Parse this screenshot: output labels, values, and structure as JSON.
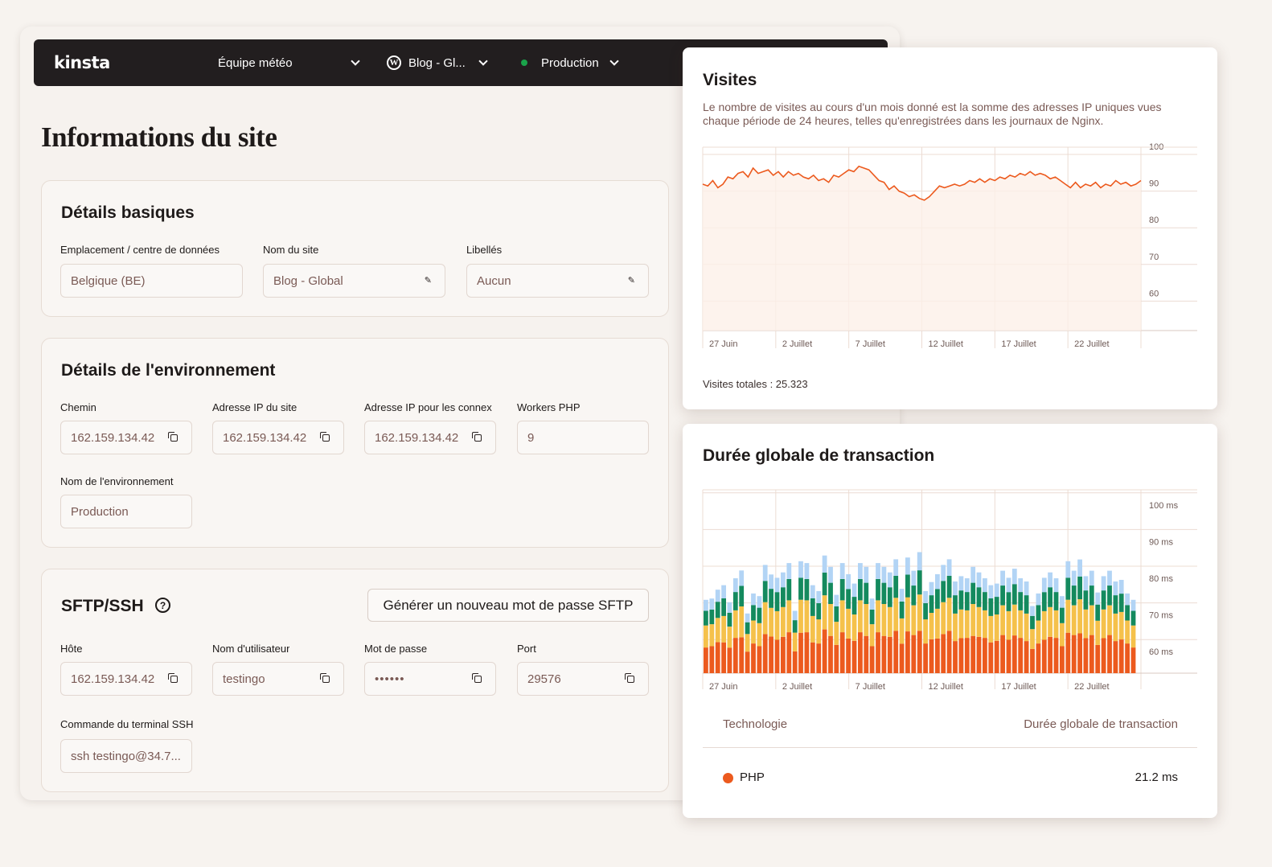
{
  "topbar": {
    "logo": "kinsta",
    "team": "Équipe météo",
    "site": "Blog - Gl...",
    "environment": "Production",
    "env_status_color": "#1aa34a"
  },
  "page_title": "Informations du site",
  "basic_details": {
    "title": "Détails basiques",
    "location_label": "Emplacement / centre de données",
    "location_value": "Belgique (BE)",
    "site_name_label": "Nom du site",
    "site_name_value": "Blog - Global",
    "labels_label": "Libellés",
    "labels_value": "Aucun"
  },
  "environment_details": {
    "title": "Détails de l'environnement",
    "path_label": "Chemin",
    "path_value": "162.159.134.42",
    "site_ip_label": "Adresse IP du site",
    "site_ip_value": "162.159.134.42",
    "conn_ip_label": "Adresse IP pour les connex",
    "conn_ip_value": "162.159.134.42",
    "php_workers_label": "Workers PHP",
    "php_workers_value": "9",
    "env_name_label": "Nom de l'environnement",
    "env_name_value": "Production"
  },
  "sftp": {
    "title": "SFTP/SSH",
    "generate_button": "Générer un nouveau mot de passe SFTP",
    "host_label": "Hôte",
    "host_value": "162.159.134.42",
    "username_label": "Nom d'utilisateur",
    "username_value": "testingo",
    "password_label": "Mot de passe",
    "password_value": "••••••",
    "port_label": "Port",
    "port_value": "29576",
    "ssh_label": "Commande du terminal SSH",
    "ssh_value": "ssh testingo@34.7..."
  },
  "visits_panel": {
    "title": "Visites",
    "description": "Le nombre de visites au cours d'un mois donné est la somme des adresses IP uniques vues chaque période de 24 heures, telles qu'enregistrées dans les journaux de Nginx.",
    "total": "Visites totales : 25.323"
  },
  "transaction_panel": {
    "title": "Durée globale de transaction",
    "col_technology": "Technologie",
    "col_duration": "Durée globale de transaction",
    "row_label": "PHP",
    "row_value": "21.2 ms",
    "row_color": "#ec5a1e"
  },
  "chart_data": [
    {
      "type": "line",
      "title": "Visites",
      "x_ticks": [
        "27 Juin",
        "2 Juillet",
        "7 Juillet",
        "12 Juillet",
        "17 Juillet",
        "22 Juillet"
      ],
      "y_ticks": [
        "100",
        "90",
        "80",
        "70",
        "60"
      ],
      "ylim": [
        50,
        100
      ],
      "grid": true,
      "color": "#ec5a1e",
      "series": [
        {
          "values": [
            91,
            90.5,
            92,
            90,
            91,
            93,
            92.5,
            94,
            94.5,
            93,
            95.5,
            94,
            94.5,
            95,
            93.5,
            94.5,
            93,
            94.5,
            93.5,
            94,
            93,
            92.5,
            93.5,
            92,
            92.5,
            91.5,
            93.5,
            93,
            94,
            95,
            94.5,
            96,
            95.5,
            95,
            93.5,
            92,
            91.5,
            89.5,
            90.5,
            89,
            88.5,
            87.5,
            88,
            87,
            86.5,
            87.5,
            89,
            90.5,
            90,
            90.5,
            91,
            90.5,
            91,
            92,
            91.5,
            92.5,
            91.5,
            92.5,
            92,
            93,
            92.5,
            93.5,
            93,
            94,
            93.5,
            94.5,
            93.5,
            94,
            93.5,
            92.5,
            93,
            92,
            91,
            90,
            91.5,
            90,
            91,
            90.5,
            91.5,
            90,
            91,
            90.5,
            92,
            91,
            91.5,
            90.5,
            91,
            92
          ]
        }
      ]
    },
    {
      "type": "bar",
      "title": "Durée globale de transaction",
      "stacked": true,
      "x_ticks": [
        "27 Juin",
        "2 Juillet",
        "7 Juillet",
        "12 Juillet",
        "17 Juillet",
        "22 Juillet"
      ],
      "y_ticks": [
        "100 ms",
        "90 ms",
        "80 ms",
        "70 ms",
        "60 ms"
      ],
      "ylim": [
        55,
        105
      ],
      "grid": true,
      "series_colors": [
        "#ec5a1e",
        "#f5c14b",
        "#148a5e",
        "#b2d4f5"
      ],
      "totals": [
        70,
        70,
        72,
        74,
        69,
        75,
        78,
        66,
        71,
        71,
        79,
        76,
        76,
        77,
        79,
        67,
        80,
        79,
        74,
        72,
        81,
        79,
        71,
        79,
        77,
        74,
        79,
        79,
        70,
        79,
        79,
        77,
        80,
        73,
        81,
        77,
        83,
        72,
        74,
        77,
        79,
        80,
        75,
        76,
        75,
        79,
        77,
        75,
        74,
        74,
        77,
        76,
        78,
        75,
        75,
        68,
        71,
        76,
        77,
        75,
        71,
        80,
        77,
        81,
        76,
        77,
        72,
        76,
        77,
        75,
        75,
        71,
        70
      ],
      "segment_ratios": [
        0.35,
        0.3,
        0.2,
        0.15
      ]
    }
  ]
}
